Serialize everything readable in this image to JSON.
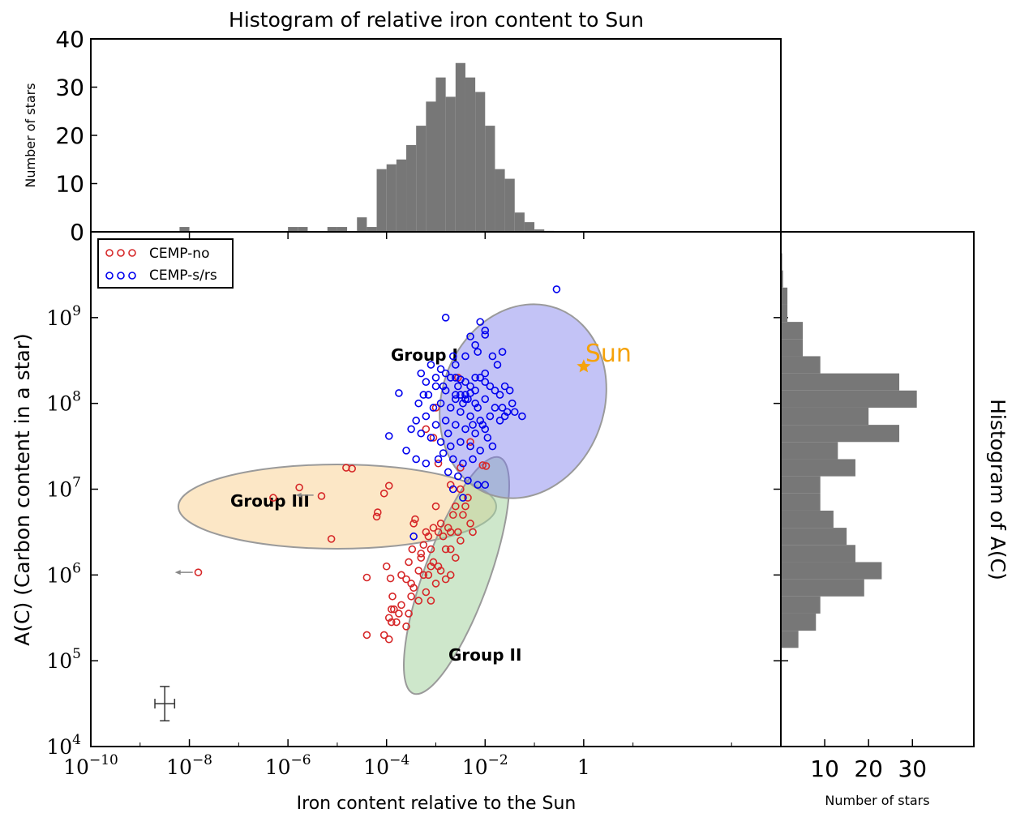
{
  "chart_data": [
    {
      "type": "bar",
      "title": "Histogram of relative iron content to Sun",
      "ylabel": "Number of stars",
      "xscale": "log",
      "xlim": [
        1e-10,
        10000
      ],
      "ylim": [
        0,
        40
      ],
      "yticks": [
        "0",
        "10",
        "20",
        "30",
        "40"
      ],
      "bin_width_dex": 0.2,
      "bins_log10_left": [
        -8.2,
        -6.0,
        -5.8,
        -5.2,
        -5.0,
        -4.6,
        -4.4,
        -4.2,
        -4.0,
        -3.8,
        -3.6,
        -3.4,
        -3.2,
        -3.0,
        -2.8,
        -2.6,
        -2.4,
        -2.2,
        -2.0,
        -1.8,
        -1.6,
        -1.4,
        -1.2,
        -1.0,
        -0.8
      ],
      "counts": [
        1,
        1,
        1,
        1,
        1,
        3,
        1,
        13,
        14,
        15,
        18,
        22,
        27,
        32,
        28,
        35,
        32,
        29,
        22,
        13,
        11,
        4,
        2,
        0.5,
        0.2
      ]
    },
    {
      "type": "scatter",
      "xlabel": "Iron content relative to the Sun",
      "ylabel": "A(C)  (Carbon content in a star)",
      "xscale": "log",
      "yscale": "log",
      "xlim": [
        1e-10,
        10000
      ],
      "ylim": [
        10000,
        1000000000000
      ],
      "xticks": [
        {
          "base": "10",
          "exp": "−10",
          "v": -10
        },
        {
          "base": "10",
          "exp": "−8",
          "v": -8
        },
        {
          "base": "10",
          "exp": "−6",
          "v": -6
        },
        {
          "base": "10",
          "exp": "−4",
          "v": -4
        },
        {
          "base": "10",
          "exp": "−2",
          "v": -2
        },
        {
          "base": "1",
          "exp": "",
          "v": 0
        }
      ],
      "yticks": [
        {
          "base": "10",
          "exp": "4",
          "v": 4
        },
        {
          "base": "10",
          "exp": "5",
          "v": 5
        },
        {
          "base": "10",
          "exp": "6",
          "v": 6
        },
        {
          "base": "10",
          "exp": "7",
          "v": 7
        },
        {
          "base": "10",
          "exp": "8",
          "v": 8
        },
        {
          "base": "10",
          "exp": "9",
          "v": 9
        }
      ],
      "legend_position": "top-left",
      "series": [
        {
          "name": "CEMP-no",
          "color": "#d62728",
          "points_log10": [
            [
              -7.82,
              6.03
            ],
            [
              -6.3,
              6.9
            ],
            [
              -5.77,
              7.02
            ],
            [
              -5.32,
              6.92
            ],
            [
              -5.12,
              6.42
            ],
            [
              -4.82,
              7.25
            ],
            [
              -4.7,
              7.24
            ],
            [
              -4.4,
              5.97
            ],
            [
              -4.2,
              6.68
            ],
            [
              -4.18,
              6.73
            ],
            [
              -4.05,
              6.95
            ],
            [
              -3.95,
              7.04
            ],
            [
              -4.4,
              5.3
            ],
            [
              -4.05,
              5.3
            ],
            [
              -3.95,
              5.25
            ],
            [
              -4.0,
              6.1
            ],
            [
              -3.92,
              5.96
            ],
            [
              -3.88,
              5.75
            ],
            [
              -3.7,
              6.0
            ],
            [
              -3.6,
              5.95
            ],
            [
              -3.55,
              6.15
            ],
            [
              -3.5,
              5.9
            ],
            [
              -3.48,
              6.3
            ],
            [
              -3.45,
              6.6
            ],
            [
              -3.42,
              6.65
            ],
            [
              -3.3,
              6.2
            ],
            [
              -3.25,
              6.35
            ],
            [
              -3.2,
              6.5
            ],
            [
              -3.15,
              6.45
            ],
            [
              -3.1,
              6.3
            ],
            [
              -3.05,
              6.55
            ],
            [
              -3.0,
              6.8
            ],
            [
              -2.95,
              6.5
            ],
            [
              -2.9,
              6.6
            ],
            [
              -2.85,
              6.45
            ],
            [
              -2.8,
              6.3
            ],
            [
              -2.75,
              6.55
            ],
            [
              -2.7,
              6.5
            ],
            [
              -2.65,
              6.7
            ],
            [
              -2.6,
              6.8
            ],
            [
              -2.55,
              6.5
            ],
            [
              -2.5,
              6.4
            ],
            [
              -2.45,
              6.7
            ],
            [
              -2.4,
              6.8
            ],
            [
              -2.35,
              6.9
            ],
            [
              -2.3,
              6.6
            ],
            [
              -2.25,
              6.5
            ],
            [
              -2.7,
              6.3
            ],
            [
              -2.6,
              6.2
            ],
            [
              -2.95,
              6.1
            ],
            [
              -3.1,
              6.1
            ],
            [
              -3.25,
              6.0
            ],
            [
              -3.35,
              6.05
            ],
            [
              -3.5,
              5.75
            ],
            [
              -3.55,
              5.55
            ],
            [
              -3.6,
              5.4
            ],
            [
              -3.75,
              5.55
            ],
            [
              -3.85,
              5.6
            ],
            [
              -3.8,
              5.45
            ],
            [
              -3.9,
              5.45
            ],
            [
              -3.95,
              5.5
            ],
            [
              -3.9,
              5.6
            ],
            [
              -3.7,
              5.65
            ],
            [
              -3.45,
              5.85
            ],
            [
              -3.35,
              5.7
            ],
            [
              -3.2,
              5.8
            ],
            [
              -3.1,
              5.7
            ],
            [
              -3.0,
              5.9
            ],
            [
              -2.8,
              5.95
            ],
            [
              -2.7,
              6.0
            ],
            [
              -2.9,
              6.05
            ],
            [
              -3.05,
              6.15
            ],
            [
              -3.15,
              6.0
            ],
            [
              -3.3,
              6.25
            ],
            [
              -2.5,
              7.0
            ],
            [
              -2.7,
              7.05
            ],
            [
              -2.5,
              7.25
            ],
            [
              -2.95,
              7.3
            ],
            [
              -3.05,
              7.6
            ],
            [
              -3.2,
              7.7
            ],
            [
              -3.0,
              7.95
            ],
            [
              -2.3,
              7.55
            ],
            [
              -2.05,
              7.28
            ],
            [
              -1.98,
              7.27
            ],
            [
              -2.55,
              8.3
            ]
          ]
        },
        {
          "name": "CEMP-s/rs",
          "color": "#0000ee",
          "points_log10": [
            [
              -0.55,
              9.33
            ],
            [
              -2.8,
              9.0
            ],
            [
              -2.1,
              8.95
            ],
            [
              -2.0,
              8.85
            ],
            [
              -2.0,
              8.8
            ],
            [
              -1.65,
              8.6
            ],
            [
              -2.3,
              8.78
            ],
            [
              -2.2,
              8.68
            ],
            [
              -2.4,
              8.55
            ],
            [
              -2.6,
              8.45
            ],
            [
              -2.9,
              8.4
            ],
            [
              -3.1,
              8.45
            ],
            [
              -3.3,
              8.35
            ],
            [
              -3.0,
              8.3
            ],
            [
              -2.8,
              8.35
            ],
            [
              -2.6,
              8.3
            ],
            [
              -2.5,
              8.28
            ],
            [
              -2.4,
              8.25
            ],
            [
              -2.3,
              8.2
            ],
            [
              -2.2,
              8.15
            ],
            [
              -2.1,
              8.3
            ],
            [
              -2.0,
              8.25
            ],
            [
              -1.9,
              8.2
            ],
            [
              -1.8,
              8.15
            ],
            [
              -1.7,
              8.1
            ],
            [
              -1.6,
              8.2
            ],
            [
              -1.5,
              8.15
            ],
            [
              -1.45,
              8.0
            ],
            [
              -1.4,
              7.9
            ],
            [
              -1.6,
              7.85
            ],
            [
              -1.8,
              7.95
            ],
            [
              -2.0,
              8.05
            ],
            [
              -2.2,
              8.0
            ],
            [
              -2.4,
              8.05
            ],
            [
              -2.6,
              8.1
            ],
            [
              -2.8,
              8.15
            ],
            [
              -3.0,
              8.2
            ],
            [
              -3.2,
              8.25
            ],
            [
              -2.9,
              8.0
            ],
            [
              -2.7,
              7.95
            ],
            [
              -2.5,
              7.9
            ],
            [
              -2.3,
              7.85
            ],
            [
              -2.1,
              7.8
            ],
            [
              -1.9,
              7.85
            ],
            [
              -1.7,
              7.8
            ],
            [
              -2.0,
              7.7
            ],
            [
              -2.2,
              7.65
            ],
            [
              -2.4,
              7.7
            ],
            [
              -2.6,
              7.75
            ],
            [
              -2.8,
              7.8
            ],
            [
              -3.0,
              7.75
            ],
            [
              -3.2,
              7.85
            ],
            [
              -3.4,
              7.8
            ],
            [
              -3.5,
              7.7
            ],
            [
              -3.3,
              7.65
            ],
            [
              -3.1,
              7.6
            ],
            [
              -2.9,
              7.55
            ],
            [
              -2.7,
              7.5
            ],
            [
              -2.5,
              7.55
            ],
            [
              -2.3,
              7.5
            ],
            [
              -2.1,
              7.45
            ],
            [
              -1.95,
              7.6
            ],
            [
              -1.85,
              7.5
            ],
            [
              -3.6,
              7.45
            ],
            [
              -3.4,
              7.35
            ],
            [
              -3.2,
              7.3
            ],
            [
              -2.95,
              7.35
            ],
            [
              -2.65,
              7.35
            ],
            [
              -2.45,
              7.3
            ],
            [
              -2.25,
              7.35
            ],
            [
              -2.75,
              7.2
            ],
            [
              -2.55,
              7.15
            ],
            [
              -2.35,
              7.1
            ],
            [
              -2.15,
              7.05
            ],
            [
              -2.0,
              7.05
            ],
            [
              -2.45,
              6.9
            ],
            [
              -2.65,
              7.0
            ],
            [
              -3.45,
              6.45
            ],
            [
              -3.95,
              7.62
            ],
            [
              -3.75,
              8.12
            ],
            [
              -2.5,
              8.1
            ],
            [
              -2.4,
              8.1
            ],
            [
              -2.45,
              8.0
            ],
            [
              -2.35,
              8.05
            ],
            [
              -2.55,
              8.2
            ],
            [
              -2.3,
              8.12
            ],
            [
              -2.6,
              8.05
            ],
            [
              -2.2,
              8.3
            ],
            [
              -2.7,
              8.3
            ],
            [
              -2.75,
              7.65
            ],
            [
              -2.85,
              7.42
            ],
            [
              -3.05,
              7.95
            ],
            [
              -3.15,
              8.1
            ],
            [
              -1.65,
              7.95
            ],
            [
              -1.55,
              7.9
            ],
            [
              -1.75,
              8.45
            ],
            [
              -1.85,
              8.55
            ],
            [
              -2.65,
              8.55
            ],
            [
              -2.85,
              8.2
            ],
            [
              -3.25,
              8.1
            ],
            [
              -3.35,
              8.0
            ],
            [
              -2.05,
              7.75
            ],
            [
              -2.25,
              7.75
            ],
            [
              -1.25,
              7.85
            ],
            [
              -2.15,
              8.6
            ],
            [
              -2.0,
              8.35
            ],
            [
              -2.15,
              7.95
            ]
          ]
        }
      ],
      "groups": [
        {
          "label": "Group I",
          "color": "#7b7bea"
        },
        {
          "label": "Group II",
          "color": "#a6d3a0"
        },
        {
          "label": "Group III",
          "color": "#fad7a0"
        }
      ],
      "upper_limits_log10": [
        [
          -7.8,
          6.03
        ],
        [
          -5.35,
          6.93
        ]
      ],
      "sun": {
        "label": "Sun",
        "x_log10": 0,
        "y_log10": 8.43,
        "color": "#f5a20a"
      },
      "errorbar": {
        "x_log10": -8.5,
        "y_log10": 4.5,
        "dx": 0.2,
        "dy": 0.2
      }
    },
    {
      "type": "bar",
      "orientation": "horizontal",
      "title": "Histogram of A(C)",
      "xlabel": "Number of stars",
      "xticks": [
        "10",
        "20",
        "30"
      ],
      "xlim": [
        0,
        44
      ],
      "ylim_log10": [
        4,
        10
      ],
      "bin_height_dex": 0.2,
      "bins_log10_bottom": [
        5.15,
        5.35,
        5.55,
        5.75,
        5.95,
        6.15,
        6.35,
        6.55,
        6.75,
        6.95,
        7.15,
        7.35,
        7.55,
        7.75,
        7.95,
        8.15,
        8.35,
        8.55,
        8.75,
        8.95,
        9.15,
        9.35,
        9.55
      ],
      "counts": [
        4,
        8,
        9,
        19,
        23,
        17,
        15,
        12,
        9,
        9,
        17,
        13,
        27,
        20,
        31,
        27,
        9,
        5,
        5,
        1.5,
        1.5,
        0.5,
        0.3
      ]
    }
  ]
}
